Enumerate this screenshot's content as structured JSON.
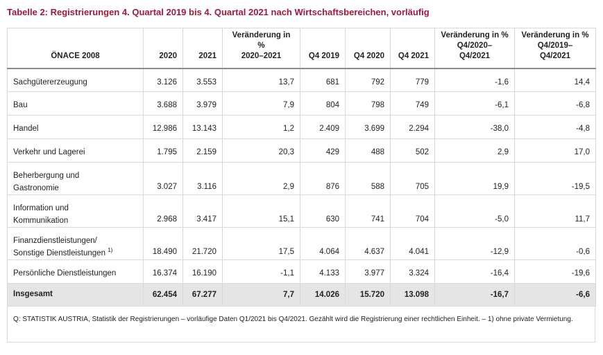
{
  "title": "Tabelle 2: Registrierungen 4. Quartal 2019 bis 4. Quartal 2021 nach Wirtschaftsbereichen, vorläufig",
  "headers": {
    "c0": "ÖNACE 2008",
    "c1": "2020",
    "c2": "2021",
    "c3": "Veränderung in % 2020–2021",
    "c4": "Q4 2019",
    "c5": "Q4 2020",
    "c6": "Q4 2021",
    "c7": "Veränderung in % Q4/2020–Q4/2021",
    "c8": "Veränderung in % Q4/2019–Q4/2021"
  },
  "header_lines": {
    "c3": [
      "Veränderung in",
      "%",
      "2020–2021"
    ],
    "c7": [
      "Veränderung in %",
      "Q4/2020–",
      "Q4/2021"
    ],
    "c8": [
      "Veränderung in %",
      "Q4/2019–",
      "Q4/2021"
    ]
  },
  "rows": [
    {
      "label": "Sachgütererzeugung",
      "v2020": "3.126",
      "v2021": "3.553",
      "chg": "13,7",
      "q419": "681",
      "q420": "792",
      "q421": "779",
      "chg_q4_2020": "-1,6",
      "chg_q4_2019": "14,4"
    },
    {
      "label": "Bau",
      "v2020": "3.688",
      "v2021": "3.979",
      "chg": "7,9",
      "q419": "804",
      "q420": "798",
      "q421": "749",
      "chg_q4_2020": "-6,1",
      "chg_q4_2019": "-6,8"
    },
    {
      "label": "Handel",
      "v2020": "12.986",
      "v2021": "13.143",
      "chg": "1,2",
      "q419": "2.409",
      "q420": "3.699",
      "q421": "2.294",
      "chg_q4_2020": "-38,0",
      "chg_q4_2019": "-4,8"
    },
    {
      "label": "Verkehr und Lagerei",
      "v2020": "1.795",
      "v2021": "2.159",
      "chg": "20,3",
      "q419": "429",
      "q420": "488",
      "q421": "502",
      "chg_q4_2020": "2,9",
      "chg_q4_2019": "17,0"
    },
    {
      "label_1": "Beherbergung und",
      "label_2": "Gastronomie",
      "v2020": "3.027",
      "v2021": "3.116",
      "chg": "2,9",
      "q419": "876",
      "q420": "588",
      "q421": "705",
      "chg_q4_2020": "19,9",
      "chg_q4_2019": "-19,5"
    },
    {
      "label_1": "Information und",
      "label_2": "Kommunikation",
      "v2020": "2.968",
      "v2021": "3.417",
      "chg": "15,1",
      "q419": "630",
      "q420": "741",
      "q421": "704",
      "chg_q4_2020": "-5,0",
      "chg_q4_2019": "11,7"
    },
    {
      "label_1": "Finanzdienstleistungen/",
      "label_2": "Sonstige Dienstleistungen",
      "footnote": "1)",
      "v2020": "18.490",
      "v2021": "21.720",
      "chg": "17,5",
      "q419": "4.064",
      "q420": "4.637",
      "q421": "4.041",
      "chg_q4_2020": "-12,9",
      "chg_q4_2019": "-0,6"
    },
    {
      "label": "Persönliche Dienstleistungen",
      "v2020": "16.374",
      "v2021": "16.190",
      "chg": "-1,1",
      "q419": "4.133",
      "q420": "3.977",
      "q421": "3.324",
      "chg_q4_2020": "-16,4",
      "chg_q4_2019": "-19,6"
    }
  ],
  "total": {
    "label": "Insgesamt",
    "v2020": "62.454",
    "v2021": "67.277",
    "chg": "7,7",
    "q419": "14.026",
    "q420": "15.720",
    "q421": "13.098",
    "chg_q4_2020": "-16,7",
    "chg_q4_2019": "-6,6"
  },
  "note": "Q: STATISTIK AUSTRIA, Statistik der Registrierungen – vorläufige Daten Q1/2021 bis Q4/2021. Gezählt wird die Registrierung einer rechtlichen Einheit. – 1) ohne private Vermietung."
}
